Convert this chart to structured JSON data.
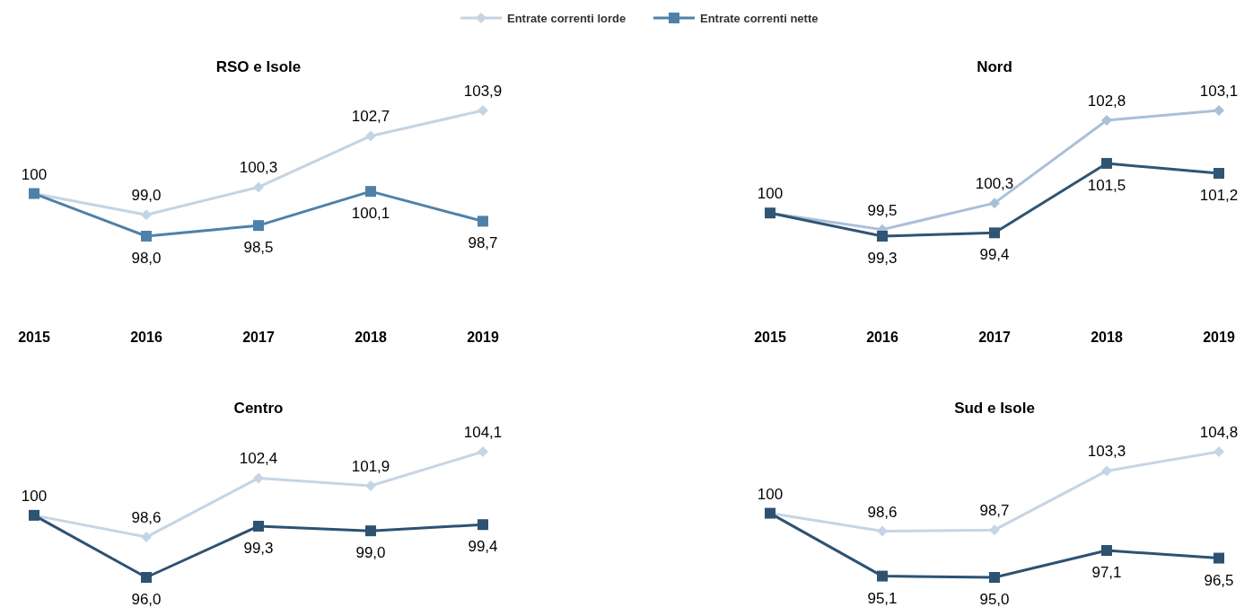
{
  "chart_data": [
    {
      "type": "line",
      "title": "RSO e Isole",
      "categories": [
        "2015",
        "2016",
        "2017",
        "2018",
        "2019"
      ],
      "legend": "top",
      "tick_labels": "x",
      "series": [
        {
          "name": "Entrate correnti lorde",
          "color": "#c4d4e3",
          "marker": "diamond",
          "values": [
            100,
            99.0,
            100.3,
            102.7,
            103.9
          ],
          "value_labels": [
            "100",
            "99,0",
            "100,3",
            "102,7",
            "103,9"
          ]
        },
        {
          "name": "Entrate correnti nette",
          "color": "#4f81a8",
          "marker": "square",
          "values": [
            100,
            98.0,
            98.5,
            100.1,
            98.7
          ],
          "value_labels": [
            null,
            "98,0",
            "98,5",
            "100,1",
            "98,7"
          ]
        }
      ]
    },
    {
      "type": "line",
      "title": "Nord",
      "categories": [
        "2015",
        "2016",
        "2017",
        "2018",
        "2019"
      ],
      "tick_labels": "x",
      "series": [
        {
          "color": "#a9c0d9",
          "marker": "diamond",
          "values": [
            100,
            99.5,
            100.3,
            102.8,
            103.1
          ],
          "value_labels": [
            "100",
            "99,5",
            "100,3",
            "102,8",
            "103,1"
          ]
        },
        {
          "color": "#2f5573",
          "marker": "square",
          "values": [
            100,
            99.3,
            99.4,
            101.5,
            101.2
          ],
          "value_labels": [
            null,
            "99,3",
            "99,4",
            "101,5",
            "101,2"
          ]
        }
      ]
    },
    {
      "type": "line",
      "title": "Centro",
      "categories": [
        null,
        null,
        null,
        null,
        null
      ],
      "tick_labels": false,
      "series": [
        {
          "color": "#c6d5e5",
          "marker": "diamond",
          "values": [
            100,
            98.6,
            102.4,
            101.9,
            104.1
          ],
          "value_labels": [
            "100",
            "98,6",
            "102,4",
            "101,9",
            "104,1"
          ]
        },
        {
          "color": "#2d5272",
          "marker": "square",
          "values": [
            100,
            96.0,
            99.3,
            99.0,
            99.4
          ],
          "value_labels": [
            null,
            "96,0",
            "99,3",
            "99,0",
            "99,4"
          ]
        }
      ]
    },
    {
      "type": "line",
      "title": "Sud e Isole",
      "categories": [
        null,
        null,
        null,
        null,
        null
      ],
      "tick_labels": false,
      "series": [
        {
          "color": "#c6d5e5",
          "marker": "diamond",
          "values": [
            100,
            98.6,
            98.7,
            103.3,
            104.8
          ],
          "value_labels": [
            "100",
            "98,6",
            "98,7",
            "103,3",
            "104,8"
          ]
        },
        {
          "color": "#2d5272",
          "marker": "square",
          "values": [
            100,
            95.1,
            95.0,
            97.1,
            96.5
          ],
          "value_labels": [
            null,
            "95,1",
            "95,0",
            "97,1",
            "96,5"
          ]
        }
      ]
    }
  ]
}
